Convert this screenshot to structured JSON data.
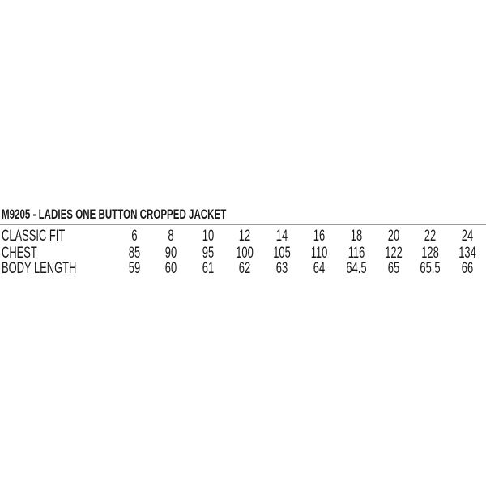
{
  "title": "M9205 - LADIES ONE BUTTON CROPPED JACKET",
  "table": {
    "header": {
      "label": "CLASSIC FIT",
      "values": [
        "6",
        "8",
        "10",
        "12",
        "14",
        "16",
        "18",
        "20",
        "22",
        "24"
      ]
    },
    "rows": [
      {
        "label": "CHEST",
        "values": [
          "85",
          "90",
          "95",
          "100",
          "105",
          "110",
          "116",
          "122",
          "128",
          "134"
        ]
      },
      {
        "label": "BODY LENGTH",
        "values": [
          "59",
          "60",
          "61",
          "62",
          "63",
          "64",
          "64.5",
          "65",
          "65.5",
          "66"
        ]
      }
    ]
  }
}
